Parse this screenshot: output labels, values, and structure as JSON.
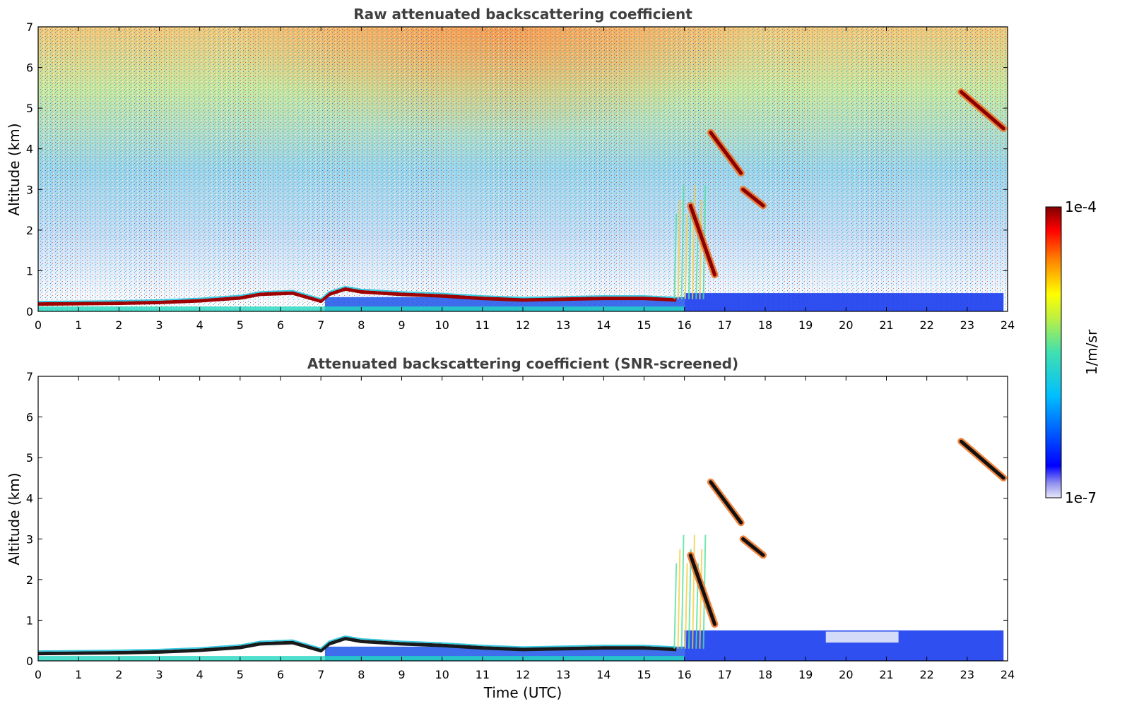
{
  "chart_data": [
    {
      "type": "heatmap",
      "title": "Raw attenuated backscattering coefficient",
      "xlabel": "",
      "ylabel": "Altitude (km)",
      "xlim": [
        0,
        24
      ],
      "ylim": [
        0,
        7
      ],
      "xticks": [
        "0",
        "1",
        "2",
        "3",
        "4",
        "5",
        "6",
        "7",
        "8",
        "9",
        "10",
        "11",
        "12",
        "13",
        "14",
        "15",
        "16",
        "17",
        "18",
        "19",
        "20",
        "21",
        "22",
        "23",
        "24"
      ],
      "yticks": [
        "0",
        "1",
        "2",
        "3",
        "4",
        "5",
        "6",
        "7"
      ],
      "boundary_layer": [
        [
          0,
          0.18
        ],
        [
          2,
          0.2
        ],
        [
          3,
          0.22
        ],
        [
          4,
          0.26
        ],
        [
          5,
          0.33
        ],
        [
          5.5,
          0.42
        ],
        [
          6.3,
          0.45
        ],
        [
          7,
          0.25
        ],
        [
          7.2,
          0.42
        ],
        [
          7.6,
          0.55
        ],
        [
          8,
          0.48
        ],
        [
          9,
          0.42
        ],
        [
          10,
          0.38
        ],
        [
          11,
          0.32
        ],
        [
          12,
          0.28
        ],
        [
          13,
          0.3
        ],
        [
          14,
          0.32
        ],
        [
          15,
          0.32
        ],
        [
          15.8,
          0.28
        ]
      ],
      "cloud_layers": [
        {
          "t": [
            16.65,
            17.4
          ],
          "z": [
            4.4,
            3.4
          ]
        },
        {
          "t": [
            17.45,
            17.95
          ],
          "z": [
            3.0,
            2.6
          ]
        },
        {
          "t": [
            16.15,
            16.75
          ],
          "z": [
            2.6,
            0.9
          ]
        },
        {
          "t": [
            22.85,
            23.9
          ],
          "z": [
            5.4,
            4.5
          ]
        }
      ]
    },
    {
      "type": "heatmap",
      "title": "Attenuated backscattering coefficient (SNR-screened)",
      "xlabel": "Time (UTC)",
      "ylabel": "Altitude (km)",
      "xlim": [
        0,
        24
      ],
      "ylim": [
        0,
        7
      ],
      "xticks": [
        "0",
        "1",
        "2",
        "3",
        "4",
        "5",
        "6",
        "7",
        "8",
        "9",
        "10",
        "11",
        "12",
        "13",
        "14",
        "15",
        "16",
        "17",
        "18",
        "19",
        "20",
        "21",
        "22",
        "23",
        "24"
      ],
      "yticks": [
        "0",
        "1",
        "2",
        "3",
        "4",
        "5",
        "6",
        "7"
      ],
      "boundary_layer": [
        [
          0,
          0.18
        ],
        [
          2,
          0.2
        ],
        [
          3,
          0.22
        ],
        [
          4,
          0.26
        ],
        [
          5,
          0.33
        ],
        [
          5.5,
          0.42
        ],
        [
          6.3,
          0.45
        ],
        [
          7,
          0.25
        ],
        [
          7.2,
          0.42
        ],
        [
          7.6,
          0.55
        ],
        [
          8,
          0.48
        ],
        [
          9,
          0.42
        ],
        [
          10,
          0.38
        ],
        [
          11,
          0.32
        ],
        [
          12,
          0.28
        ],
        [
          13,
          0.3
        ],
        [
          14,
          0.32
        ],
        [
          15,
          0.32
        ],
        [
          15.8,
          0.28
        ]
      ],
      "cloud_layers": [
        {
          "t": [
            16.65,
            17.4
          ],
          "z": [
            4.4,
            3.4
          ]
        },
        {
          "t": [
            17.45,
            17.95
          ],
          "z": [
            3.0,
            2.6
          ]
        },
        {
          "t": [
            16.15,
            16.75
          ],
          "z": [
            2.6,
            0.9
          ]
        },
        {
          "t": [
            22.85,
            23.9
          ],
          "z": [
            5.4,
            4.5
          ]
        }
      ]
    }
  ],
  "colorbar": {
    "label": "1/m/sr",
    "max_label": "1e-4",
    "min_label": "1e-7",
    "scale": "log",
    "colormap": "jet"
  }
}
